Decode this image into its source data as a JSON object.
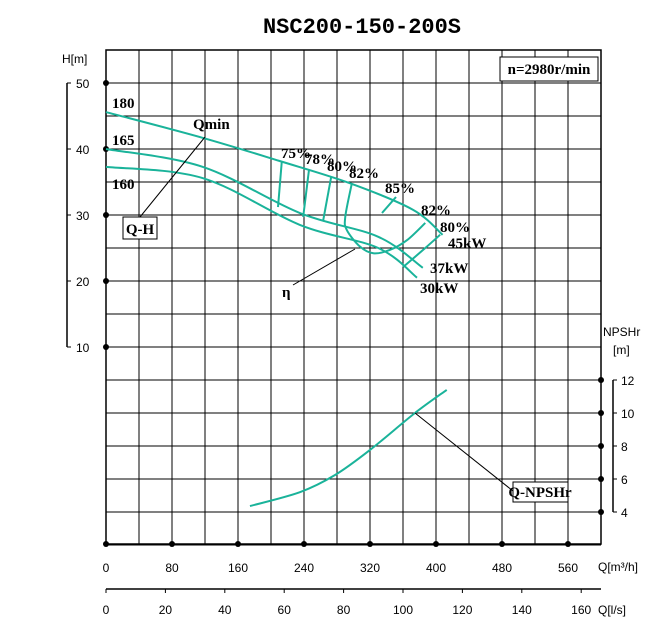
{
  "chart_data": {
    "type": "line",
    "title": "NSC200-150-200S",
    "speed_label": "n=2980r/min",
    "colors": {
      "curve": "#1ab39a",
      "grid": "#000000"
    },
    "grid": true,
    "x_axis": {
      "label": "Q[m³/h]",
      "range": [
        0,
        600
      ],
      "ticks": [
        0,
        80,
        160,
        240,
        320,
        400,
        480,
        560
      ]
    },
    "x2_axis": {
      "label": "Q[l/s]",
      "ticks": [
        0,
        20,
        40,
        60,
        80,
        100,
        120,
        140,
        160
      ]
    },
    "y_axis": {
      "label": "H[m]",
      "ticks": [
        50,
        40,
        30,
        20,
        10
      ]
    },
    "y2_axis": {
      "label_line1": "NPSHr",
      "label_line2": "[m]",
      "ticks": [
        12,
        10,
        8,
        6,
        4
      ]
    },
    "head_curves": [
      {
        "name": "180",
        "points": [
          [
            0,
            45.6
          ],
          [
            117,
            41.7
          ],
          [
            210,
            38.2
          ],
          [
            296,
            34.8
          ],
          [
            372,
            30.8
          ],
          [
            408,
            27
          ]
        ]
      },
      {
        "name": "165",
        "points": [
          [
            0,
            40
          ],
          [
            117,
            37.3
          ],
          [
            235,
            30.3
          ],
          [
            330,
            26.7
          ],
          [
            384,
            22
          ]
        ]
      },
      {
        "name": "160",
        "points": [
          [
            0,
            37.3
          ],
          [
            117,
            35.6
          ],
          [
            235,
            28.5
          ],
          [
            330,
            25
          ],
          [
            377,
            20.5
          ]
        ]
      }
    ],
    "efficiency_contours": [
      {
        "name": "75%",
        "points": [
          [
            213,
            38
          ],
          [
            208.5,
            31.2
          ]
        ]
      },
      {
        "name": "78%",
        "points": [
          [
            246,
            36.8
          ],
          [
            239,
            29.7
          ]
        ]
      },
      {
        "name": "80%",
        "points": [
          [
            273,
            35.8
          ],
          [
            263,
            29
          ]
        ]
      },
      {
        "name": "82%",
        "points": [
          [
            298,
            34.8
          ],
          [
            290,
            29.7
          ],
          [
            292,
            27.7
          ],
          [
            308,
            25.2
          ],
          [
            324,
            24.2
          ],
          [
            344,
            24.7
          ],
          [
            365,
            26.2
          ],
          [
            387,
            28.8
          ]
        ]
      },
      {
        "name": "80%",
        "points": [
          [
            405,
            27
          ],
          [
            387,
            25
          ],
          [
            360,
            22.1
          ]
        ]
      }
    ],
    "npshr_curve": {
      "name": "Q-NPSHr",
      "points": [
        [
          174.5,
          4.36
        ],
        [
          235,
          5.2
        ],
        [
          277.6,
          6.24
        ],
        [
          320,
          7.76
        ],
        [
          374.5,
          10
        ],
        [
          413,
          11.4
        ]
      ]
    },
    "annotations": {
      "qh_label": "Q-H",
      "qmin_label": "Qmin",
      "eta_label": "η",
      "eff_85_label": "85%",
      "eff_82_right_label": "82%",
      "power_labels": [
        "45kW",
        "37kW",
        "30kW"
      ]
    }
  }
}
